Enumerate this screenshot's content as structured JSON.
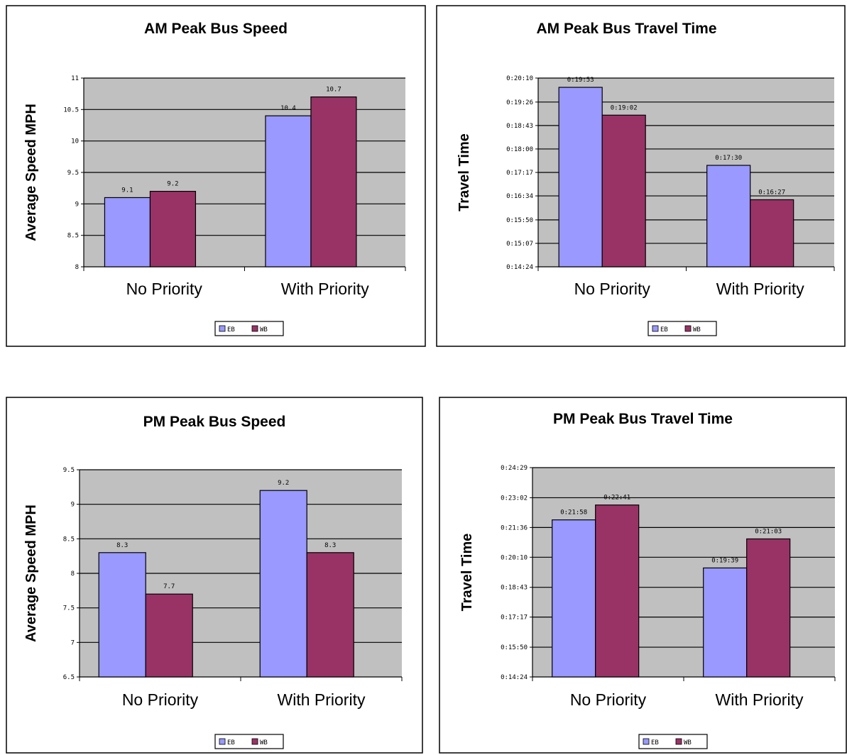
{
  "colors": {
    "eb": "#9999ff",
    "wb": "#993366",
    "plot_bg": "#c0c0c0",
    "frame": "#000000"
  },
  "chart_data": [
    {
      "type": "bar",
      "title": "AM Peak Bus Speed",
      "ylabel": "Average Speed MPH",
      "xlabel": "",
      "categories": [
        "No Priority",
        "With Priority"
      ],
      "series": [
        {
          "name": "EB",
          "values": [
            9.1,
            10.4
          ],
          "labels": [
            "9.1",
            "10.4"
          ]
        },
        {
          "name": "WB",
          "values": [
            9.2,
            10.7
          ],
          "labels": [
            "9.2",
            "10.7"
          ]
        }
      ],
      "yticks": [
        8,
        8.5,
        9,
        9.5,
        10,
        10.5,
        11
      ],
      "ytick_labels": [
        "8",
        "8.5",
        "9",
        "9.5",
        "10",
        "10.5",
        "11"
      ],
      "ylim": [
        8,
        11
      ],
      "grid": true,
      "legend": "bottom"
    },
    {
      "type": "bar",
      "title": "AM Peak Bus Travel Time",
      "ylabel": "Travel Time",
      "xlabel": "",
      "categories": [
        "No Priority",
        "With Priority"
      ],
      "series": [
        {
          "name": "EB",
          "values": [
            1193,
            1050
          ],
          "labels": [
            "0:19:53",
            "0:17:30"
          ]
        },
        {
          "name": "WB",
          "values": [
            1142,
            987
          ],
          "labels": [
            "0:19:02",
            "0:16:27"
          ]
        }
      ],
      "yticks": [
        864,
        907,
        950,
        994,
        1037,
        1080,
        1123,
        1166,
        1210
      ],
      "ytick_labels": [
        "0:14:24",
        "0:15:07",
        "0:15:50",
        "0:16:34",
        "0:17:17",
        "0:18:00",
        "0:18:43",
        "0:19:26",
        "0:20:10"
      ],
      "ylim": [
        864,
        1210
      ],
      "grid": true,
      "legend": "bottom"
    },
    {
      "type": "bar",
      "title": "PM Peak Bus Speed",
      "ylabel": "Average Speed MPH",
      "xlabel": "",
      "categories": [
        "No Priority",
        "With Priority"
      ],
      "series": [
        {
          "name": "EB",
          "values": [
            8.3,
            9.2
          ],
          "labels": [
            "8.3",
            "9.2"
          ]
        },
        {
          "name": "WB",
          "values": [
            7.7,
            8.3
          ],
          "labels": [
            "7.7",
            "8.3"
          ]
        }
      ],
      "yticks": [
        6.5,
        7,
        7.5,
        8,
        8.5,
        9,
        9.5
      ],
      "ytick_labels": [
        "6.5",
        "7",
        "7.5",
        "8",
        "8.5",
        "9",
        "9.5"
      ],
      "ylim": [
        6.5,
        9.5
      ],
      "grid": true,
      "legend": "bottom"
    },
    {
      "type": "bar",
      "title": "PM Peak Bus Travel Time",
      "ylabel": "Travel Time",
      "xlabel": "",
      "categories": [
        "No Priority",
        "With Priority"
      ],
      "series": [
        {
          "name": "EB",
          "values": [
            1318,
            1179
          ],
          "labels": [
            "0:21:58",
            "0:19:39"
          ]
        },
        {
          "name": "WB",
          "values": [
            1361,
            1263
          ],
          "labels": [
            "0:22:41",
            "0:21:03"
          ]
        }
      ],
      "yticks": [
        864,
        950,
        1037,
        1123,
        1210,
        1296,
        1382,
        1469
      ],
      "ytick_labels": [
        "0:14:24",
        "0:15:50",
        "0:17:17",
        "0:18:43",
        "0:20:10",
        "0:21:36",
        "0:23:02",
        "0:24:29"
      ],
      "ylim": [
        864,
        1469
      ],
      "grid": true,
      "legend": "bottom"
    }
  ]
}
